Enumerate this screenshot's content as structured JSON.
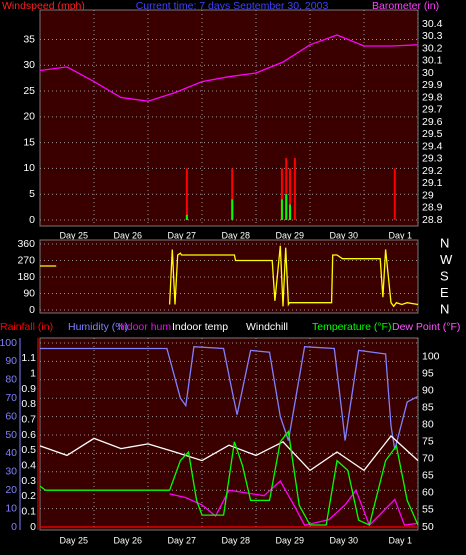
{
  "chart_data": [
    {
      "type": "combo",
      "title": "Current time: 7 days September 30, 2003",
      "ylabel": "Windspeed (mph)",
      "y2label": "Barometer (in)",
      "xlim": [
        0,
        7
      ],
      "xticks": [
        {
          "value": 1,
          "label": "Day 25"
        },
        {
          "value": 2,
          "label": "Day 26"
        },
        {
          "value": 3,
          "label": "Day 27"
        },
        {
          "value": 4,
          "label": "Day 28"
        },
        {
          "value": 5,
          "label": "Day 29"
        },
        {
          "value": 6,
          "label": "Day 30"
        },
        {
          "value": 7,
          "label": "Day 1"
        }
      ],
      "ylim": [
        0,
        38
      ],
      "yticks": [
        0,
        5,
        10,
        15,
        20,
        25,
        30,
        35
      ],
      "y2lim": [
        28.8,
        30.4
      ],
      "y2ticks": [
        28.8,
        28.9,
        29,
        29.1,
        29.2,
        29.3,
        29.4,
        29.5,
        29.6,
        29.7,
        29.8,
        29.9,
        30,
        30.1,
        30.2,
        30.3,
        30.4
      ],
      "grid": true,
      "series": [
        {
          "type": "bar",
          "color": "#ff0000",
          "x": [
            2.72,
            3.56,
            4.48,
            4.56,
            4.63,
            4.72,
            6.57
          ],
          "values": [
            10,
            10,
            10,
            12,
            10,
            12,
            10
          ]
        },
        {
          "type": "bar",
          "color": "#00ff00",
          "x": [
            2.72,
            3.56,
            4.48,
            4.56,
            4.63,
            4.72,
            6.57
          ],
          "values": [
            1,
            4,
            4,
            5,
            3,
            0,
            0
          ]
        },
        {
          "type": "line",
          "axis": "y2",
          "color": "#ff00ff",
          "x": [
            0,
            0.5,
            1,
            1.5,
            2,
            2.5,
            3,
            3.5,
            4,
            4.5,
            5,
            5.5,
            6,
            6.5,
            7
          ],
          "values": [
            30.02,
            30.05,
            29.93,
            29.8,
            29.77,
            29.84,
            29.93,
            29.97,
            30.0,
            30.09,
            30.23,
            30.31,
            30.22,
            30.22,
            30.23
          ]
        }
      ]
    },
    {
      "type": "line",
      "xlim": [
        0,
        7
      ],
      "ylim": [
        0,
        360
      ],
      "yticks": [
        0,
        90,
        180,
        270,
        360
      ],
      "compass_ticks": [
        {
          "value": 0,
          "label": "N"
        },
        {
          "value": 90,
          "label": "E"
        },
        {
          "value": 180,
          "label": "S"
        },
        {
          "value": 270,
          "label": "W"
        },
        {
          "value": 360,
          "label": "N"
        }
      ],
      "grid": true,
      "series": [
        {
          "type": "line",
          "color": "#ffff00",
          "x": [
            0,
            0.3,
            0.31,
            2.4,
            2.45,
            2.5,
            2.55,
            2.6,
            2.62,
            3.6,
            3.62,
            3.7,
            4.3,
            4.35,
            4.45,
            4.5,
            4.55,
            4.6,
            4.62,
            5.4,
            5.42,
            5.5,
            5.6,
            6.3,
            6.35,
            6.4,
            6.5,
            6.55,
            6.6,
            6.7,
            6.8,
            7
          ],
          "values": [
            240,
            240,
            null,
            30,
            330,
            30,
            300,
            310,
            300,
            300,
            270,
            270,
            270,
            50,
            350,
            20,
            340,
            30,
            40,
            40,
            300,
            300,
            280,
            280,
            70,
            330,
            40,
            20,
            40,
            30,
            40,
            30
          ]
        }
      ]
    },
    {
      "type": "line",
      "xlim": [
        0,
        7
      ],
      "xticks": [
        {
          "value": 1,
          "label": "Day 25"
        },
        {
          "value": 2,
          "label": "Day 26"
        },
        {
          "value": 3,
          "label": "Day 27"
        },
        {
          "value": 4,
          "label": "Day 28"
        },
        {
          "value": 5,
          "label": "Day 29"
        },
        {
          "value": 6,
          "label": "Day 30"
        },
        {
          "value": 7,
          "label": "Day 1"
        }
      ],
      "ylim": [
        0,
        100
      ],
      "yticks": [
        0,
        10,
        20,
        30,
        40,
        50,
        60,
        70,
        80,
        90,
        100
      ],
      "y2lim": [
        50,
        104
      ],
      "y2ticks": [
        50,
        55,
        60,
        65,
        70,
        75,
        80,
        85,
        90,
        95,
        100
      ],
      "y3lim": [
        0,
        1.2
      ],
      "y3ticks": [
        0,
        0.1,
        0.2,
        0.3,
        0.4,
        0.5,
        0.6,
        0.7,
        0.8,
        0.9,
        1,
        1.1
      ],
      "grid": true,
      "series": [
        {
          "name": "Rainfall (in)",
          "axis": "y3",
          "color": "#ff0000",
          "x": [
            0,
            7
          ],
          "values": [
            0,
            0
          ]
        },
        {
          "name": "Humidity (%)",
          "color": "#8080ff",
          "x": [
            0,
            2.35,
            2.6,
            2.7,
            2.85,
            3.4,
            3.55,
            3.65,
            3.9,
            4.25,
            4.45,
            4.6,
            4.9,
            5.45,
            5.6,
            5.65,
            5.9,
            6.4,
            6.5,
            6.57,
            6.8,
            7
          ],
          "values": [
            97,
            97,
            70,
            66,
            98,
            97,
            75,
            61,
            96,
            95,
            60,
            47,
            98,
            97,
            60,
            47,
            96,
            94,
            55,
            42,
            68,
            71
          ]
        },
        {
          "name": "Indoor hum",
          "color": "#ff00ff",
          "x": [
            2.4,
            2.7,
            3.0,
            3.25,
            3.5,
            4.15,
            4.45,
            4.7,
            4.9,
            5.35,
            5.65,
            5.85,
            6.1,
            6.57,
            6.75,
            7
          ],
          "values": [
            18,
            16,
            12,
            6,
            20,
            17,
            25,
            12,
            1,
            4,
            12,
            20,
            1,
            15,
            1,
            2
          ]
        },
        {
          "name": "Indoor temp",
          "axis": "y2",
          "color": "#ffffff",
          "x": [
            0,
            0.5,
            1,
            1.5,
            2,
            2.5,
            3,
            3.5,
            4,
            4.5,
            5,
            5.5,
            6,
            6.5,
            7
          ],
          "values": [
            73.8,
            71,
            76,
            73,
            74.4,
            72,
            69.5,
            74,
            71,
            75,
            66.6,
            72,
            66.6,
            76.7,
            69.5
          ]
        },
        {
          "name": "Windchill",
          "axis": "y2",
          "color": "#ffffff",
          "x": [
            0,
            7
          ],
          "values": [
            null,
            null
          ]
        },
        {
          "name": "Temperature (°F)",
          "axis": "y2",
          "color": "#00ff00",
          "x": [
            0,
            0.1,
            2.4,
            2.6,
            2.75,
            2.9,
            3.0,
            3.4,
            3.6,
            3.75,
            3.9,
            4.25,
            4.45,
            4.6,
            4.8,
            5.0,
            5.3,
            5.5,
            5.7,
            5.9,
            6.1,
            6.4,
            6.6,
            6.8,
            7
          ],
          "values": [
            62,
            60.8,
            60.8,
            69.5,
            72,
            57.8,
            53.5,
            53.5,
            75,
            68,
            57.8,
            57.8,
            75,
            78,
            56.4,
            50.6,
            50.6,
            69.5,
            66.6,
            52,
            50.6,
            69.5,
            73.8,
            57.8,
            50.6
          ]
        },
        {
          "name": "Dew Point (°F)",
          "axis": "y2",
          "color": "#ff55ff",
          "x": [
            0,
            7
          ],
          "values": [
            null,
            null
          ]
        }
      ]
    }
  ]
}
